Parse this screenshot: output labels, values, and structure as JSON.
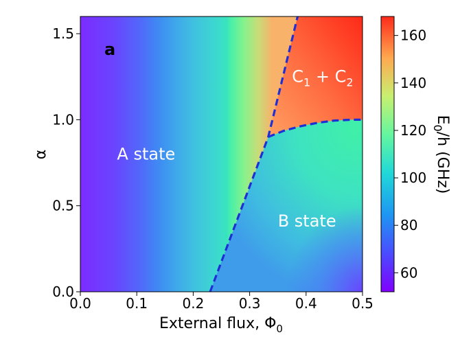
{
  "chart_data": {
    "type": "heatmap",
    "panel_label": "a",
    "xlabel_text": "External flux, Φ",
    "xlabel_subscript": "0",
    "ylabel": "α",
    "xlim": [
      0.0,
      0.5
    ],
    "ylim": [
      0.0,
      1.6
    ],
    "x_ticks": [
      "0.0",
      "0.1",
      "0.2",
      "0.3",
      "0.4",
      "0.5"
    ],
    "x_tick_values": [
      0.0,
      0.1,
      0.2,
      0.3,
      0.4,
      0.5
    ],
    "y_ticks": [
      "0.0",
      "0.5",
      "1.0",
      "1.5"
    ],
    "y_tick_values": [
      0.0,
      0.5,
      1.0,
      1.5
    ],
    "colormap": "rainbow",
    "colorbar": {
      "label_main": "E",
      "label_sub": "0",
      "label_rest": "/h (GHz)",
      "range": [
        52,
        168
      ],
      "ticks": [
        "60",
        "80",
        "100",
        "120",
        "140",
        "160"
      ],
      "tick_values": [
        60,
        80,
        100,
        120,
        140,
        160
      ]
    },
    "regions": [
      {
        "label": "A state",
        "x": 0.065,
        "y": 0.8
      },
      {
        "label": "B state",
        "x": 0.35,
        "y": 0.41
      },
      {
        "label_main": "C",
        "sub1": "1",
        "plus": " + C",
        "sub2": "2",
        "x": 0.375,
        "y": 1.25
      }
    ],
    "boundaries": {
      "color": "#1f2fd6",
      "style": "dashed",
      "ab_line": {
        "x": [
          0.23,
          0.333,
          0.385
        ],
        "y": [
          0.0,
          0.9,
          1.6
        ]
      },
      "bc_curve": {
        "x": [
          0.333,
          0.36,
          0.39,
          0.42,
          0.45,
          0.48,
          0.5
        ],
        "y": [
          0.9,
          0.935,
          0.962,
          0.982,
          0.995,
          1.0,
          1.0
        ]
      }
    }
  }
}
